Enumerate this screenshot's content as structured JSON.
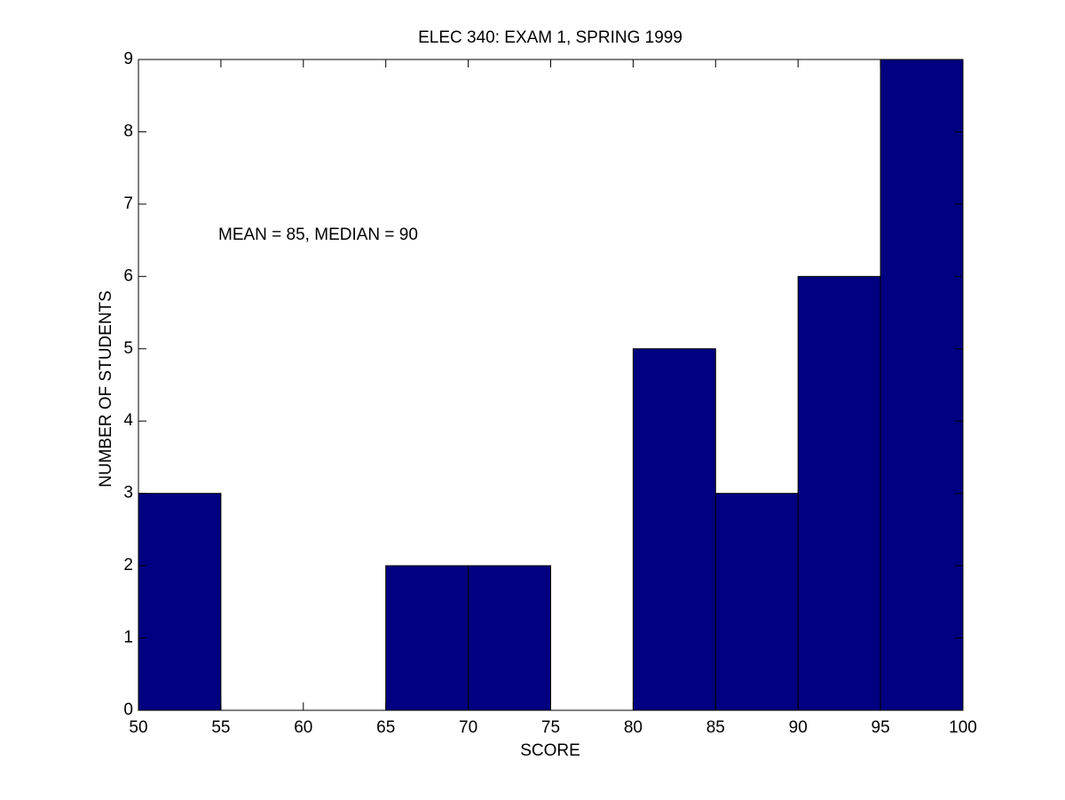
{
  "chart_data": {
    "type": "histogram",
    "title": "ELEC 340: EXAM 1, SPRING 1999",
    "xlabel": "SCORE",
    "ylabel": "NUMBER OF STUDENTS",
    "annotation": "MEAN = 85, MEDIAN = 90",
    "bins": [
      50,
      55,
      60,
      65,
      70,
      75,
      80,
      85,
      90,
      95,
      100
    ],
    "values": [
      3,
      0,
      0,
      2,
      2,
      0,
      5,
      3,
      6,
      9
    ],
    "color": "#000080",
    "xlim": [
      50,
      100
    ],
    "ylim": [
      0,
      9
    ],
    "xticks": [
      50,
      55,
      60,
      65,
      70,
      75,
      80,
      85,
      90,
      95,
      100
    ],
    "yticks": [
      0,
      1,
      2,
      3,
      4,
      5,
      6,
      7,
      8,
      9
    ],
    "grid": false
  }
}
